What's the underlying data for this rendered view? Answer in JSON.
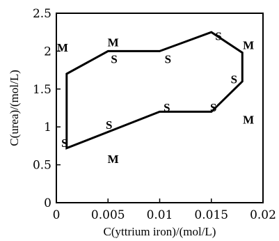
{
  "chart_data": {
    "type": "line",
    "title": "",
    "xlabel": "C(yttrium iron)/(mol/L)",
    "ylabel": "C(urea)/(mol/L)",
    "xlim": [
      0,
      0.02
    ],
    "ylim": [
      0,
      2.5
    ],
    "x_ticks": [
      0,
      0.005,
      0.01,
      0.015,
      0.02
    ],
    "x_tick_labels": [
      "0",
      "0.005",
      "0.01",
      "0.015",
      "0.02"
    ],
    "y_ticks": [
      0,
      0.5,
      1,
      1.5,
      2,
      2.5
    ],
    "y_tick_labels": [
      "0",
      "0.5",
      "1",
      "1.5",
      "2",
      "2.5"
    ],
    "grid": false,
    "series": [
      {
        "closed": true,
        "points": [
          {
            "x": 0.001,
            "y": 1.7
          },
          {
            "x": 0.005,
            "y": 2.0
          },
          {
            "x": 0.01,
            "y": 2.0
          },
          {
            "x": 0.015,
            "y": 2.25
          },
          {
            "x": 0.018,
            "y": 1.98
          },
          {
            "x": 0.018,
            "y": 1.6
          },
          {
            "x": 0.015,
            "y": 1.2
          },
          {
            "x": 0.01,
            "y": 1.2
          },
          {
            "x": 0.001,
            "y": 0.72
          }
        ]
      }
    ],
    "annotations": [
      {
        "text": "M",
        "x": 0.0006,
        "y": 2.05
      },
      {
        "text": "M",
        "x": 0.0055,
        "y": 2.12
      },
      {
        "text": "S",
        "x": 0.0056,
        "y": 1.9
      },
      {
        "text": "S",
        "x": 0.0108,
        "y": 1.9
      },
      {
        "text": "S",
        "x": 0.0157,
        "y": 2.2
      },
      {
        "text": "M",
        "x": 0.0186,
        "y": 2.08
      },
      {
        "text": "S",
        "x": 0.0172,
        "y": 1.63
      },
      {
        "text": "S",
        "x": 0.0107,
        "y": 1.26
      },
      {
        "text": "S",
        "x": 0.0152,
        "y": 1.26
      },
      {
        "text": "M",
        "x": 0.0186,
        "y": 1.1
      },
      {
        "text": "S",
        "x": 0.0051,
        "y": 1.03
      },
      {
        "text": "S",
        "x": 0.0008,
        "y": 0.79
      },
      {
        "text": "M",
        "x": 0.0055,
        "y": 0.58
      }
    ]
  }
}
